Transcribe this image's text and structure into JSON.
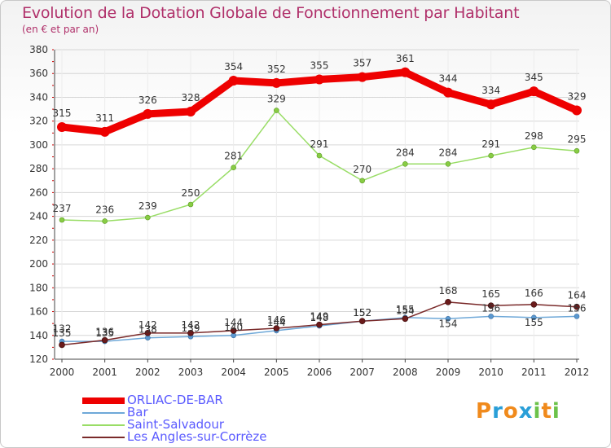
{
  "header": {
    "title": "Evolution de la Dotation Globale de Fonctionnement par Habitant",
    "subtitle": "(en € et par an)"
  },
  "logo": {
    "text": "Proxiti",
    "colors": [
      "#f08a1c",
      "#2a9fd8",
      "#f08a1c",
      "#2a9fd8",
      "#6cc24a",
      "#f08a1c",
      "#6cc24a"
    ]
  },
  "chart_data": {
    "type": "line",
    "x": [
      "2000",
      "2001",
      "2002",
      "2003",
      "2004",
      "2005",
      "2006",
      "2007",
      "2008",
      "2009",
      "2010",
      "2011",
      "2012"
    ],
    "ylim": [
      120,
      380
    ],
    "yticks": [
      120,
      140,
      160,
      180,
      200,
      220,
      240,
      260,
      280,
      300,
      320,
      340,
      360,
      380
    ],
    "grid": true,
    "legend_position": "bottom-left",
    "series": [
      {
        "name": "ORLIAC-DE-BAR",
        "color": "#ee0000",
        "values": [
          315,
          311,
          326,
          328,
          354,
          352,
          355,
          357,
          361,
          344,
          334,
          345,
          329
        ],
        "labels": [
          "315",
          "311",
          "326",
          "328",
          "354",
          "352",
          "355",
          "357",
          "361",
          "344",
          "334",
          "345",
          "329"
        ]
      },
      {
        "name": "Bar",
        "color": "#6ea8d8",
        "values": [
          135,
          135,
          138,
          139,
          140,
          144,
          148,
          152,
          155,
          154,
          156,
          155,
          156
        ],
        "labels": [
          "135",
          "135",
          "138",
          "139",
          "140",
          "144",
          "148",
          "152",
          "155",
          "154",
          "156",
          "155",
          "156"
        ]
      },
      {
        "name": "Saint-Salvadour",
        "color": "#99dd66",
        "values": [
          237,
          236,
          239,
          250,
          281,
          329,
          291,
          270,
          284,
          284,
          291,
          298,
          295
        ],
        "labels": [
          "237",
          "236",
          "239",
          "250",
          "281",
          "329",
          "291",
          "270",
          "284",
          "284",
          "291",
          "298",
          "295"
        ]
      },
      {
        "name": "Les Angles-sur-Corrèze",
        "color": "#7a2a2a",
        "values": [
          132,
          136,
          142,
          142,
          144,
          146,
          149,
          152,
          154,
          168,
          165,
          166,
          164
        ],
        "labels": [
          "132",
          "136",
          "142",
          "142",
          "144",
          "146",
          "149",
          "152",
          "154",
          "168",
          "165",
          "166",
          "164"
        ]
      }
    ]
  }
}
